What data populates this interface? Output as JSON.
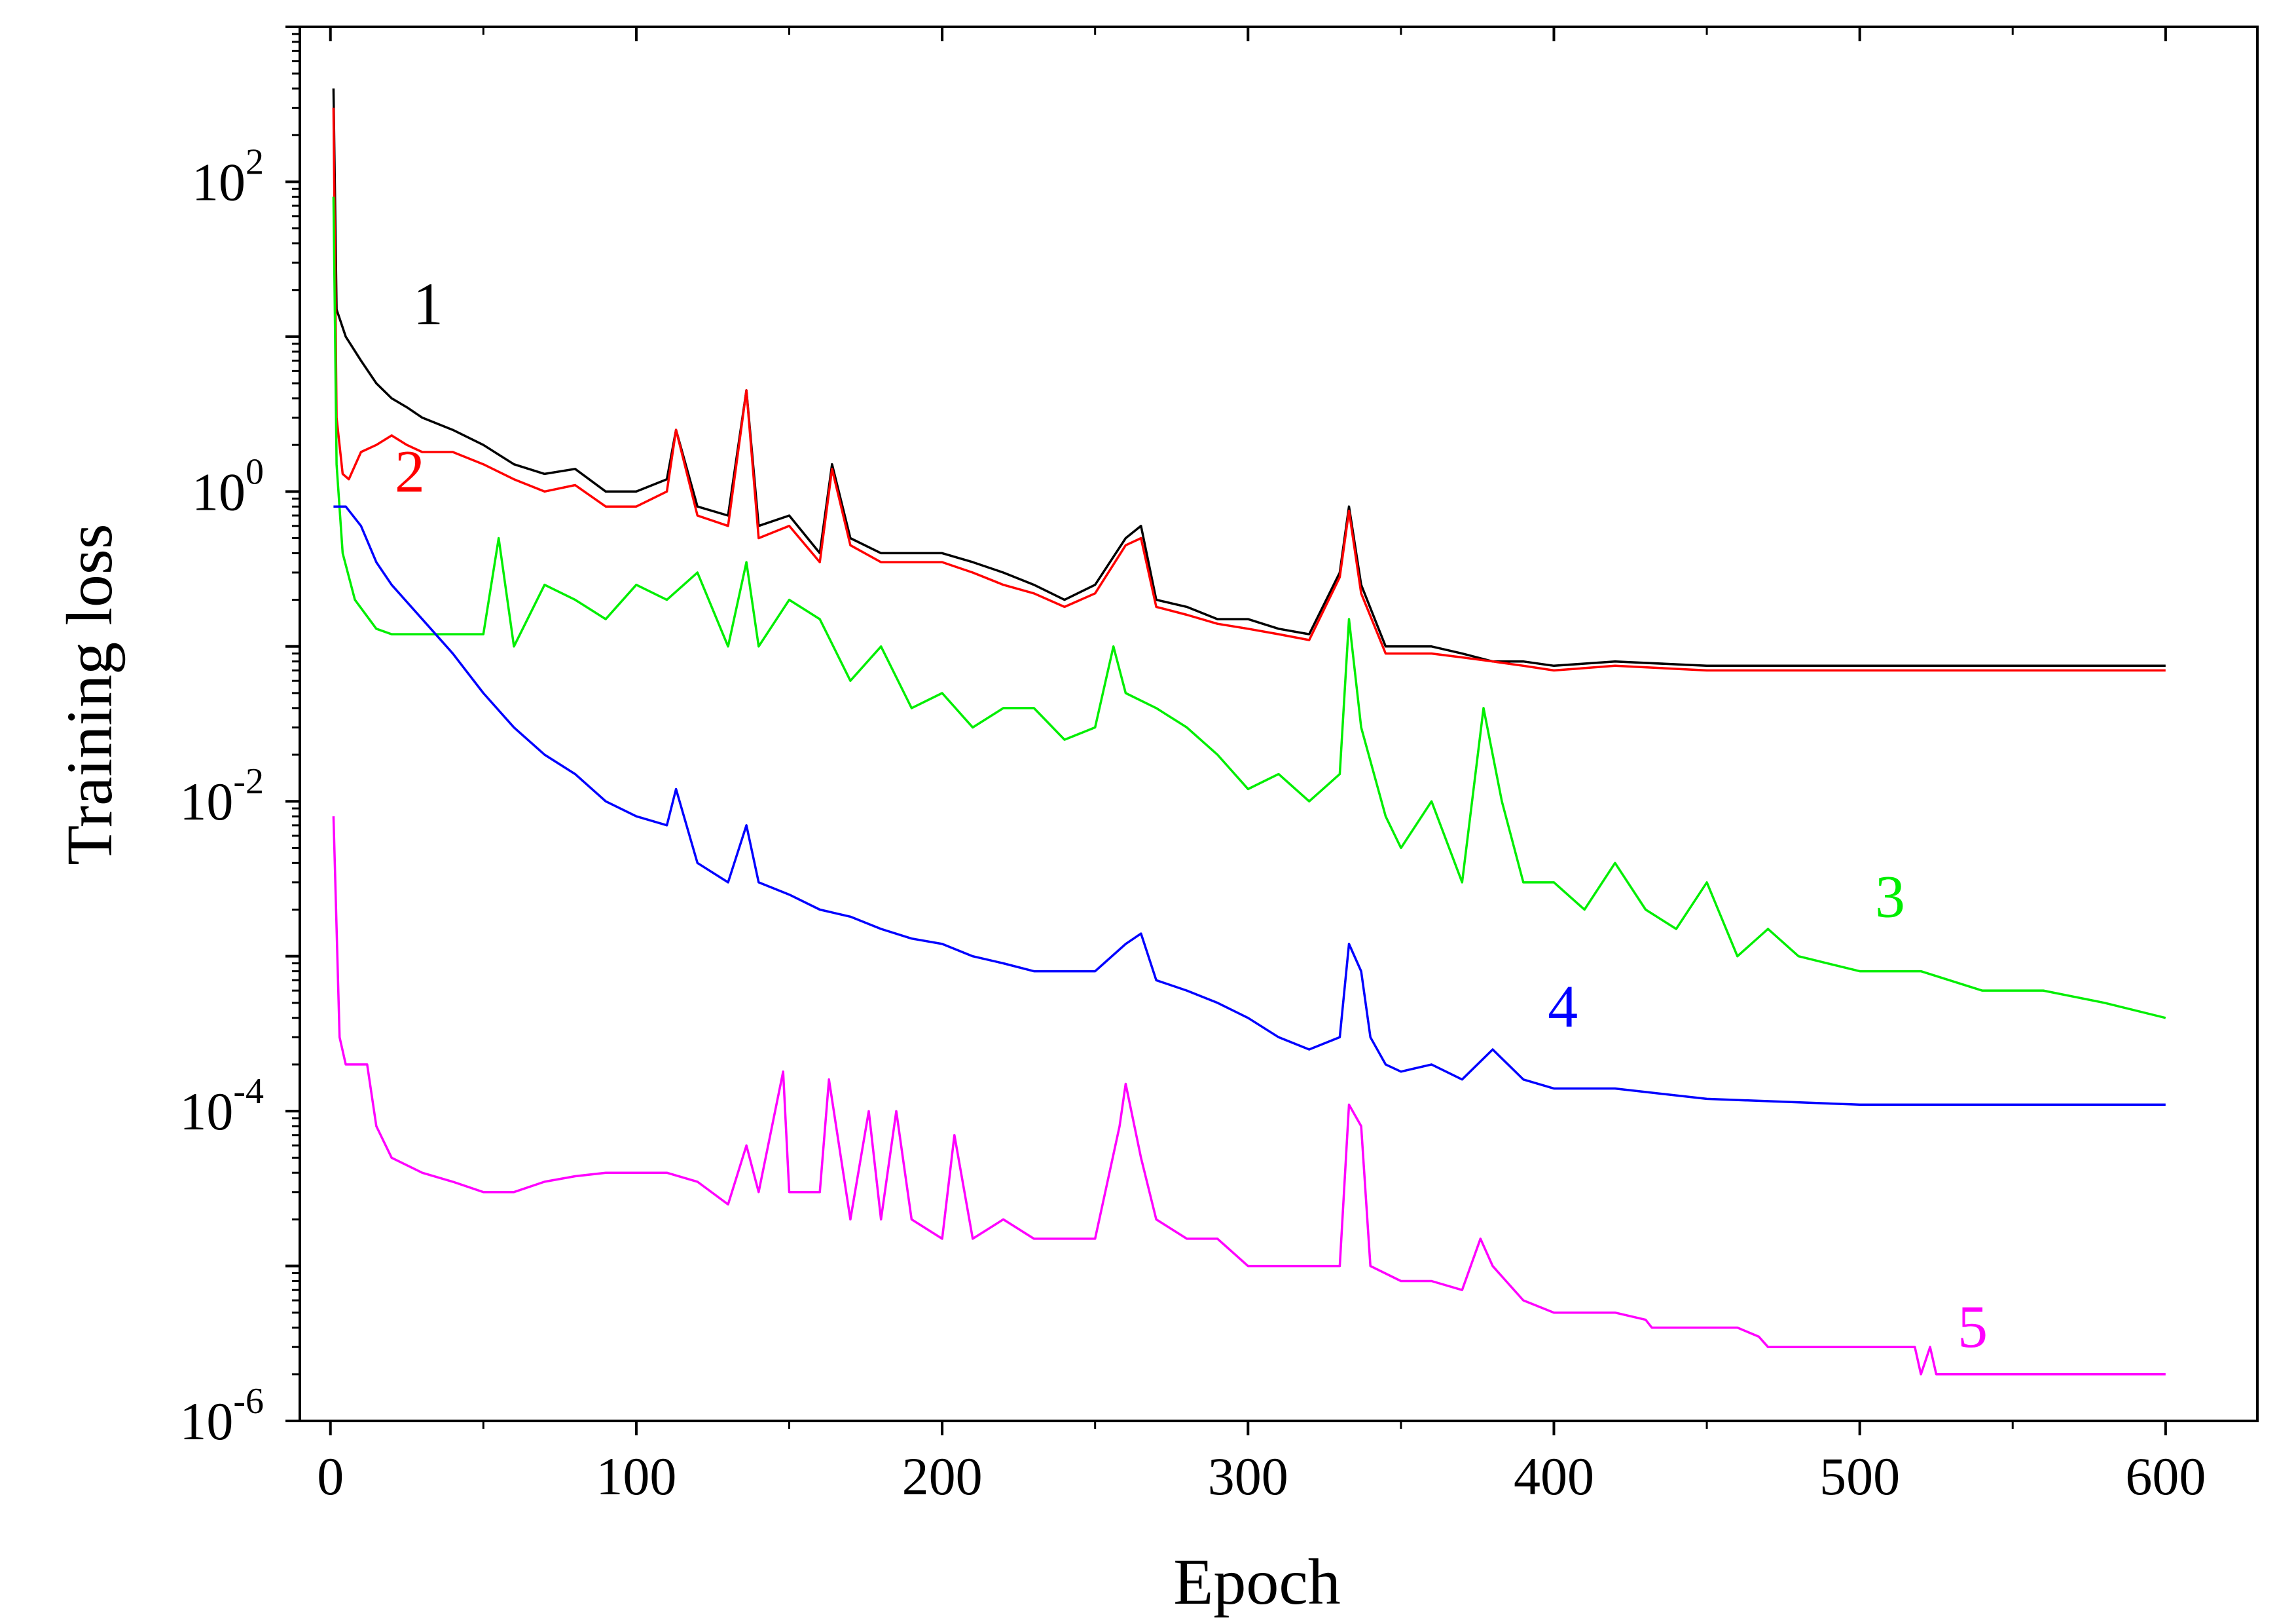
{
  "chart_data": {
    "type": "line",
    "xlabel": "Epoch",
    "ylabel": "Training loss",
    "xlim": [
      -10,
      630
    ],
    "ylim_exponent": [
      -6,
      3
    ],
    "yscale": "log",
    "x_ticks": [
      0,
      100,
      200,
      300,
      400,
      500,
      600
    ],
    "x_tick_labels": [
      "0",
      "100",
      "200",
      "300",
      "400",
      "500",
      "600"
    ],
    "y_ticks": [
      1e-06,
      0.0001,
      0.01,
      1,
      100
    ],
    "y_tick_labels": [
      {
        "base": "10",
        "exp": "-6"
      },
      {
        "base": "10",
        "exp": "-4"
      },
      {
        "base": "10",
        "exp": "-2"
      },
      {
        "base": "10",
        "exp": "0"
      },
      {
        "base": "10",
        "exp": "2"
      }
    ],
    "grid": false,
    "series": [
      {
        "name": "1",
        "color": "#000000",
        "label_at": [
          27,
          12
        ],
        "x": [
          1,
          2,
          5,
          10,
          15,
          20,
          25,
          30,
          40,
          50,
          60,
          70,
          80,
          90,
          100,
          110,
          113,
          120,
          130,
          136,
          140,
          150,
          160,
          164,
          170,
          180,
          190,
          200,
          210,
          220,
          230,
          240,
          250,
          260,
          265,
          270,
          280,
          290,
          300,
          310,
          320,
          330,
          333,
          337,
          345,
          350,
          360,
          370,
          380,
          390,
          400,
          420,
          450,
          500,
          550,
          600
        ],
        "y": [
          400,
          15,
          10,
          7,
          5,
          4,
          3.5,
          3,
          2.5,
          2,
          1.5,
          1.3,
          1.4,
          1.0,
          1.0,
          1.2,
          2.5,
          0.8,
          0.7,
          4.5,
          0.6,
          0.7,
          0.4,
          1.5,
          0.5,
          0.4,
          0.4,
          0.4,
          0.35,
          0.3,
          0.25,
          0.2,
          0.25,
          0.5,
          0.6,
          0.2,
          0.18,
          0.15,
          0.15,
          0.13,
          0.12,
          0.3,
          0.8,
          0.25,
          0.1,
          0.1,
          0.1,
          0.09,
          0.08,
          0.08,
          0.075,
          0.08,
          0.075,
          0.075,
          0.075,
          0.075
        ]
      },
      {
        "name": "2",
        "color": "#ff0000",
        "label_at": [
          21,
          1.0
        ],
        "x": [
          1,
          2,
          4,
          6,
          10,
          15,
          20,
          25,
          30,
          40,
          50,
          60,
          70,
          80,
          90,
          100,
          110,
          113,
          120,
          130,
          136,
          140,
          150,
          160,
          164,
          170,
          180,
          190,
          200,
          210,
          220,
          230,
          240,
          250,
          260,
          265,
          270,
          280,
          290,
          300,
          310,
          320,
          330,
          333,
          337,
          345,
          350,
          360,
          370,
          380,
          390,
          400,
          420,
          450,
          500,
          550,
          600
        ],
        "y": [
          300,
          3,
          1.3,
          1.2,
          1.8,
          2.0,
          2.3,
          2.0,
          1.8,
          1.8,
          1.5,
          1.2,
          1.0,
          1.1,
          0.8,
          0.8,
          1.0,
          2.5,
          0.7,
          0.6,
          4.5,
          0.5,
          0.6,
          0.35,
          1.4,
          0.45,
          0.35,
          0.35,
          0.35,
          0.3,
          0.25,
          0.22,
          0.18,
          0.22,
          0.45,
          0.5,
          0.18,
          0.16,
          0.14,
          0.13,
          0.12,
          0.11,
          0.28,
          0.75,
          0.22,
          0.09,
          0.09,
          0.09,
          0.085,
          0.08,
          0.075,
          0.07,
          0.075,
          0.07,
          0.07,
          0.07,
          0.07
        ]
      },
      {
        "name": "3",
        "color": "#00ee00",
        "label_at": [
          505,
          0.0018
        ],
        "x": [
          1,
          2,
          4,
          8,
          15,
          20,
          30,
          40,
          50,
          55,
          60,
          70,
          80,
          90,
          100,
          110,
          120,
          130,
          136,
          140,
          150,
          160,
          170,
          180,
          190,
          200,
          210,
          220,
          230,
          240,
          250,
          256,
          260,
          270,
          280,
          290,
          300,
          310,
          320,
          330,
          333,
          337,
          345,
          350,
          360,
          370,
          377,
          383,
          390,
          400,
          410,
          420,
          430,
          440,
          450,
          460,
          470,
          480,
          500,
          520,
          540,
          560,
          580,
          600
        ],
        "y": [
          80,
          1.5,
          0.4,
          0.2,
          0.13,
          0.12,
          0.12,
          0.12,
          0.12,
          0.5,
          0.1,
          0.25,
          0.2,
          0.15,
          0.25,
          0.2,
          0.3,
          0.1,
          0.35,
          0.1,
          0.2,
          0.15,
          0.06,
          0.1,
          0.04,
          0.05,
          0.03,
          0.04,
          0.04,
          0.025,
          0.03,
          0.1,
          0.05,
          0.04,
          0.03,
          0.02,
          0.012,
          0.015,
          0.01,
          0.015,
          0.15,
          0.03,
          0.008,
          0.005,
          0.01,
          0.003,
          0.04,
          0.01,
          0.003,
          0.003,
          0.002,
          0.004,
          0.002,
          0.0015,
          0.003,
          0.001,
          0.0015,
          0.001,
          0.0008,
          0.0008,
          0.0006,
          0.0006,
          0.0005,
          0.0004
        ]
      },
      {
        "name": "4",
        "color": "#0000ff",
        "label_at": [
          398,
          0.00035
        ],
        "x": [
          1,
          5,
          10,
          15,
          20,
          30,
          40,
          50,
          60,
          70,
          80,
          90,
          100,
          110,
          113,
          120,
          130,
          136,
          140,
          150,
          160,
          170,
          180,
          190,
          200,
          210,
          220,
          230,
          240,
          250,
          260,
          265,
          270,
          280,
          290,
          300,
          310,
          320,
          330,
          333,
          337,
          340,
          345,
          350,
          360,
          370,
          380,
          390,
          400,
          420,
          450,
          500,
          550,
          600
        ],
        "y": [
          0.8,
          0.8,
          0.6,
          0.35,
          0.25,
          0.15,
          0.09,
          0.05,
          0.03,
          0.02,
          0.015,
          0.01,
          0.008,
          0.007,
          0.012,
          0.004,
          0.003,
          0.007,
          0.003,
          0.0025,
          0.002,
          0.0018,
          0.0015,
          0.0013,
          0.0012,
          0.001,
          0.0009,
          0.0008,
          0.0008,
          0.0008,
          0.0012,
          0.0014,
          0.0007,
          0.0006,
          0.0005,
          0.0004,
          0.0003,
          0.00025,
          0.0003,
          0.0012,
          0.0008,
          0.0003,
          0.0002,
          0.00018,
          0.0002,
          0.00016,
          0.00025,
          0.00016,
          0.00014,
          0.00014,
          0.00012,
          0.00011,
          0.00011,
          0.00011
        ]
      },
      {
        "name": "5",
        "color": "#ff00ff",
        "label_at": [
          532,
          3e-06
        ],
        "x": [
          1,
          3,
          5,
          8,
          12,
          15,
          20,
          30,
          40,
          50,
          60,
          70,
          80,
          90,
          100,
          110,
          120,
          130,
          136,
          140,
          148,
          150,
          160,
          163,
          170,
          176,
          180,
          185,
          190,
          200,
          204,
          210,
          220,
          230,
          240,
          250,
          258,
          260,
          265,
          270,
          280,
          290,
          300,
          310,
          320,
          330,
          333,
          337,
          340,
          350,
          360,
          370,
          376,
          380,
          390,
          400,
          420,
          430,
          432,
          450,
          460,
          467,
          470,
          500,
          518,
          520,
          523,
          525,
          550,
          600
        ],
        "y": [
          0.008,
          0.0003,
          0.0002,
          0.0002,
          0.0002,
          8e-05,
          5e-05,
          4e-05,
          3.5e-05,
          3e-05,
          3e-05,
          3.5e-05,
          3.8e-05,
          4e-05,
          4e-05,
          4e-05,
          3.5e-05,
          2.5e-05,
          6e-05,
          3e-05,
          0.00018,
          3e-05,
          3e-05,
          0.00016,
          2e-05,
          0.0001,
          2e-05,
          0.0001,
          2e-05,
          1.5e-05,
          7e-05,
          1.5e-05,
          2e-05,
          1.5e-05,
          1.5e-05,
          1.5e-05,
          8e-05,
          0.00015,
          5e-05,
          2e-05,
          1.5e-05,
          1.5e-05,
          1e-05,
          1e-05,
          1e-05,
          1e-05,
          0.00011,
          8e-05,
          1e-05,
          8e-06,
          8e-06,
          7e-06,
          1.5e-05,
          1e-05,
          6e-06,
          5e-06,
          5e-06,
          4.5e-06,
          4e-06,
          4e-06,
          4e-06,
          3.5e-06,
          3e-06,
          3e-06,
          3e-06,
          2e-06,
          3e-06,
          2e-06,
          2e-06,
          2e-06
        ]
      }
    ]
  }
}
